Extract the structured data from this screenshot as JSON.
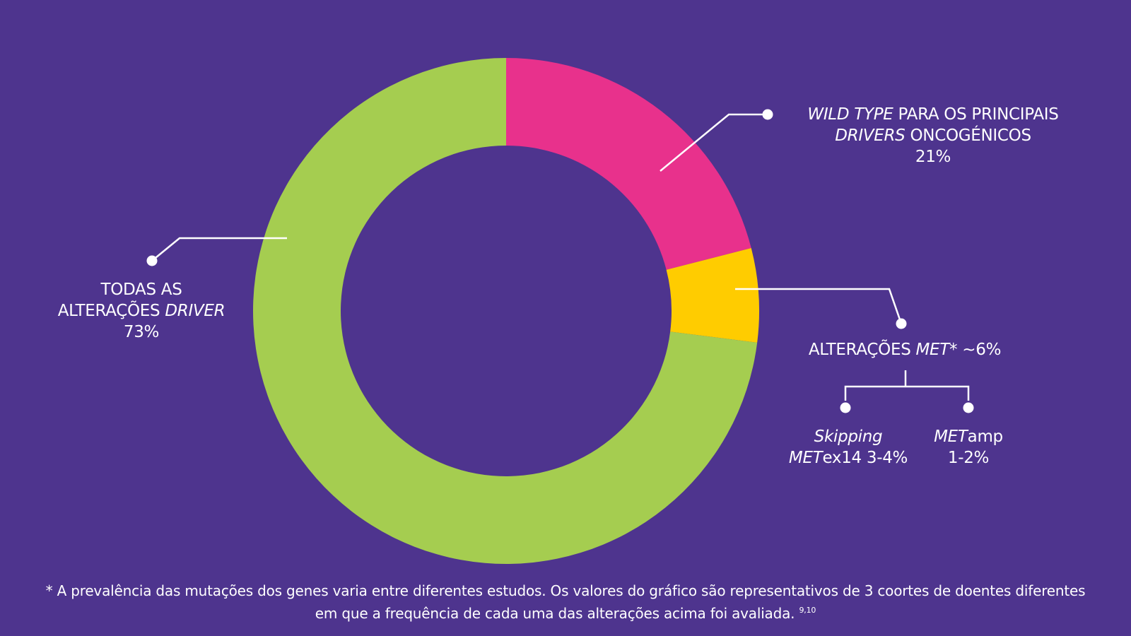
{
  "chart_data": {
    "type": "pie",
    "style": "donut",
    "slices": [
      {
        "key": "wild_type",
        "value": 21,
        "color": "#e8318c",
        "label_parts": [
          [
            "WILD TYPE",
            true
          ],
          [
            " PARA OS PRINCIPAIS",
            false
          ],
          [
            "\n",
            false
          ],
          [
            "DRIVERS",
            true
          ],
          [
            " ONCOGÉNICOS",
            false
          ],
          [
            "\n",
            false
          ],
          [
            "21%",
            false
          ]
        ]
      },
      {
        "key": "met",
        "value": 6,
        "color": "#ffcc00",
        "label_parts": [
          [
            "ALTERAÇÕES ",
            false
          ],
          [
            "MET",
            true
          ],
          [
            "* ~6%",
            false
          ]
        ]
      },
      {
        "key": "driver",
        "value": 73,
        "color": "#a5cd50",
        "label_parts": [
          [
            "TODAS AS",
            false
          ],
          [
            "\n",
            false
          ],
          [
            "ALTERAÇÕES ",
            false
          ],
          [
            "DRIVER",
            true
          ],
          [
            "\n",
            false
          ],
          [
            "73%",
            false
          ]
        ]
      }
    ],
    "sub_breakdown": {
      "parent": "met",
      "items": [
        {
          "key": "skipping",
          "label_parts": [
            [
              "Skipping",
              true
            ],
            [
              "\n",
              false
            ],
            [
              "MET",
              true
            ],
            [
              "ex14 3-4%",
              false
            ]
          ]
        },
        {
          "key": "metamp",
          "label_parts": [
            [
              "MET",
              true
            ],
            [
              "amp",
              false
            ],
            [
              "\n",
              false
            ],
            [
              "1-2%",
              false
            ]
          ]
        }
      ]
    },
    "legend": "none"
  },
  "footnote": {
    "line1": "* A prevalência das mutações dos genes varia entre diferentes estudos. Os valores do gráfico são representativos de 3 coortes de doentes diferentes",
    "line2": "em que a frequência de cada uma das alterações acima foi avaliada.",
    "refs": "9,10"
  },
  "colors": {
    "background": "#4e348e",
    "text": "#ffffff",
    "leader": "#ffffff"
  }
}
